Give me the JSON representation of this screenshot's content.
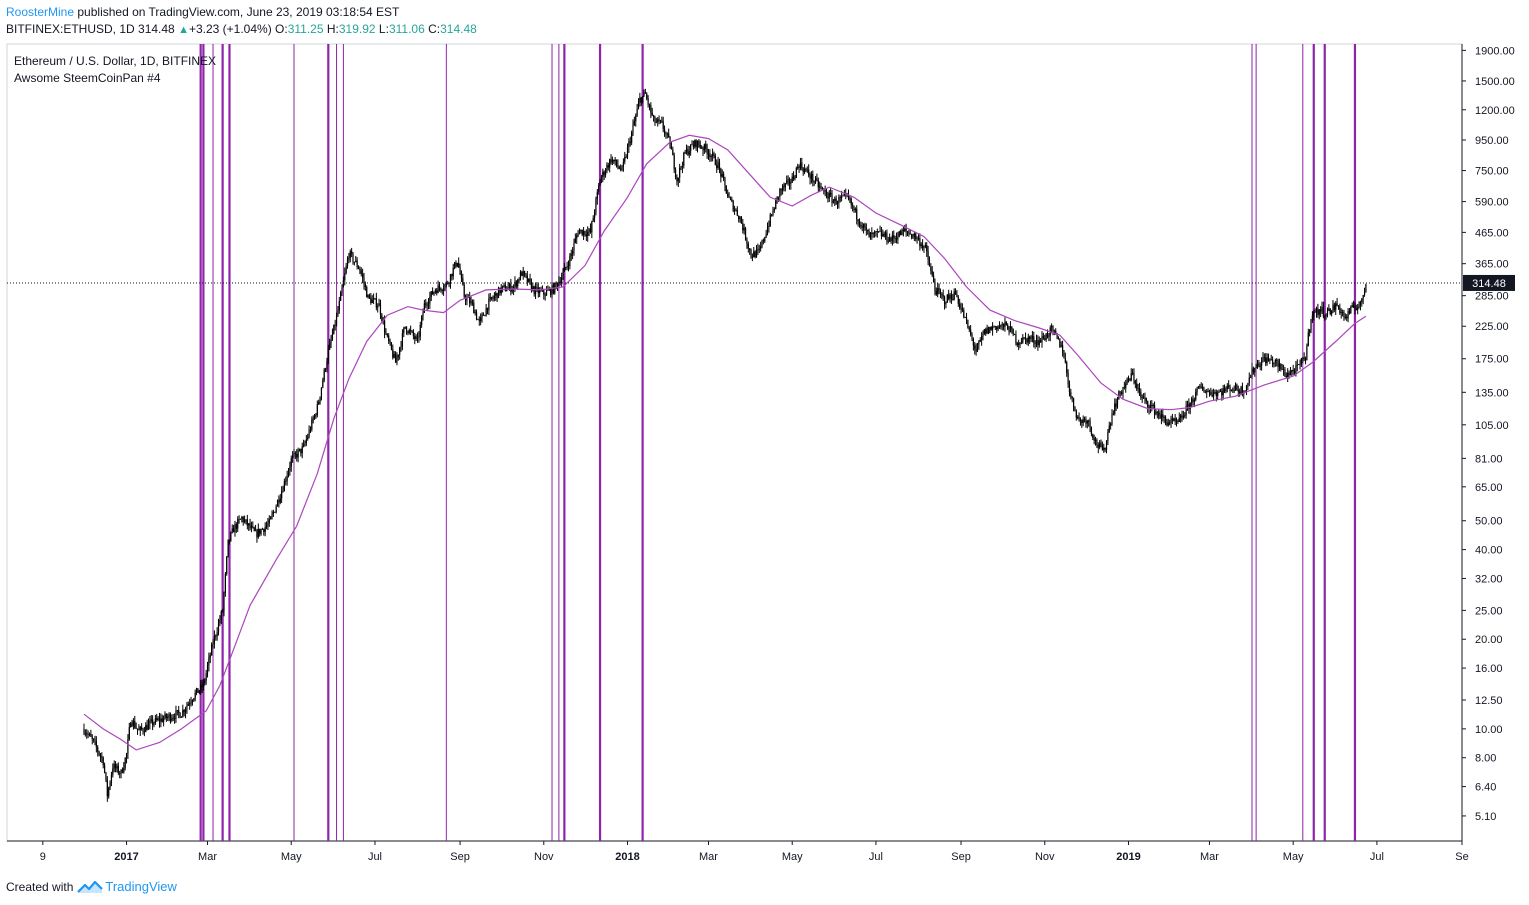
{
  "header": {
    "author": "RoosterMine",
    "published_text": "published on TradingView.com, June 23, 2019 03:18:54 EST"
  },
  "quote": {
    "symbol": "BITFINEX:ETHUSD, 1D",
    "last": "314.48",
    "arrow": "▲",
    "change": "+3.23 (+1.04%)",
    "o_label": "O:",
    "o_value": "311.25",
    "h_label": "H:",
    "h_value": "319.92",
    "l_label": "L:",
    "l_value": "311.06",
    "c_label": "C:",
    "c_value": "314.48"
  },
  "footer": {
    "created_with": "Created with",
    "brand": "TradingView"
  },
  "colors": {
    "candle": "#000000",
    "moving_average": "#ab47bc",
    "vertical_lines": "#8e24aa",
    "brand_blue": "#2196f3",
    "up_green": "#26a69a"
  },
  "chart_data": {
    "type": "line",
    "title": "Ethereum / U.S. Dollar, 1D, BITFINEX",
    "subtitle": "Awsome SteemCoinPan #4",
    "y_scale": "log",
    "ylim": [
      4.3,
      1950
    ],
    "xlim": [
      "2016-12-01",
      "2019-09-01"
    ],
    "y_ticks": [
      "1900.00",
      "1500.00",
      "1200.00",
      "950.00",
      "750.00",
      "590.00",
      "465.00",
      "365.00",
      "285.00",
      "225.00",
      "175.00",
      "135.00",
      "105.00",
      "81.00",
      "65.00",
      "50.00",
      "40.00",
      "32.00",
      "25.00",
      "20.00",
      "16.00",
      "12.50",
      "10.00",
      "8.00",
      "6.40",
      "5.10"
    ],
    "x_ticks": [
      {
        "date": "2016-11-01",
        "label": "9"
      },
      {
        "date": "2017-01-01",
        "label": "2017"
      },
      {
        "date": "2017-03-01",
        "label": "Mar"
      },
      {
        "date": "2017-05-01",
        "label": "May"
      },
      {
        "date": "2017-07-01",
        "label": "Jul"
      },
      {
        "date": "2017-09-01",
        "label": "Sep"
      },
      {
        "date": "2017-11-01",
        "label": "Nov"
      },
      {
        "date": "2018-01-01",
        "label": "2018"
      },
      {
        "date": "2018-03-01",
        "label": "Mar"
      },
      {
        "date": "2018-05-01",
        "label": "May"
      },
      {
        "date": "2018-07-01",
        "label": "Jul"
      },
      {
        "date": "2018-09-01",
        "label": "Sep"
      },
      {
        "date": "2018-11-01",
        "label": "Nov"
      },
      {
        "date": "2019-01-01",
        "label": "2019"
      },
      {
        "date": "2019-03-01",
        "label": "Mar"
      },
      {
        "date": "2019-05-01",
        "label": "May"
      },
      {
        "date": "2019-07-01",
        "label": "Jul"
      },
      {
        "date": "2019-09-01",
        "label": "Se"
      }
    ],
    "last_price": 314.48,
    "last_price_label": "314.48",
    "vertical_lines": [
      {
        "date": "2017-02-24",
        "weight": "bold"
      },
      {
        "date": "2017-02-26",
        "weight": "bold"
      },
      {
        "date": "2017-03-05",
        "weight": "thin"
      },
      {
        "date": "2017-03-12",
        "weight": "bold"
      },
      {
        "date": "2017-03-17",
        "weight": "bold"
      },
      {
        "date": "2017-05-03",
        "weight": "thin"
      },
      {
        "date": "2017-05-28",
        "weight": "bold"
      },
      {
        "date": "2017-06-03",
        "weight": "thin"
      },
      {
        "date": "2017-06-08",
        "weight": "thin"
      },
      {
        "date": "2017-08-22",
        "weight": "thin"
      },
      {
        "date": "2017-11-07",
        "weight": "thin"
      },
      {
        "date": "2017-11-12",
        "weight": "thin"
      },
      {
        "date": "2017-11-16",
        "weight": "bold"
      },
      {
        "date": "2017-12-12",
        "weight": "bold"
      },
      {
        "date": "2018-01-12",
        "weight": "bold"
      },
      {
        "date": "2019-04-01",
        "weight": "thin"
      },
      {
        "date": "2019-04-04",
        "weight": "thin"
      },
      {
        "date": "2019-05-08",
        "weight": "thin"
      },
      {
        "date": "2019-05-16",
        "weight": "bold"
      },
      {
        "date": "2019-05-24",
        "weight": "bold"
      },
      {
        "date": "2019-06-15",
        "weight": "bold"
      }
    ],
    "series": [
      {
        "name": "ETHUSD",
        "style": "candles",
        "points": [
          [
            "2016-12-01",
            10.0
          ],
          [
            "2016-12-08",
            9.0
          ],
          [
            "2016-12-15",
            7.8
          ],
          [
            "2016-12-18",
            6.0
          ],
          [
            "2016-12-22",
            7.5
          ],
          [
            "2016-12-28",
            7.1
          ],
          [
            "2017-01-01",
            8.2
          ],
          [
            "2017-01-04",
            10.8
          ],
          [
            "2017-01-10",
            9.8
          ],
          [
            "2017-01-20",
            10.5
          ],
          [
            "2017-02-01",
            11.0
          ],
          [
            "2017-02-10",
            11.3
          ],
          [
            "2017-02-18",
            12.8
          ],
          [
            "2017-02-26",
            14.0
          ],
          [
            "2017-03-05",
            19.5
          ],
          [
            "2017-03-12",
            25.0
          ],
          [
            "2017-03-16",
            42.0
          ],
          [
            "2017-03-20",
            47.0
          ],
          [
            "2017-03-26",
            51.0
          ],
          [
            "2017-04-05",
            45.0
          ],
          [
            "2017-04-15",
            49.0
          ],
          [
            "2017-04-25",
            65.0
          ],
          [
            "2017-05-01",
            80.0
          ],
          [
            "2017-05-10",
            88.0
          ],
          [
            "2017-05-20",
            120.0
          ],
          [
            "2017-05-28",
            185.0
          ],
          [
            "2017-06-03",
            240.0
          ],
          [
            "2017-06-12",
            395.0
          ],
          [
            "2017-06-20",
            350.0
          ],
          [
            "2017-06-26",
            280.0
          ],
          [
            "2017-07-04",
            265.0
          ],
          [
            "2017-07-09",
            210.0
          ],
          [
            "2017-07-16",
            170.0
          ],
          [
            "2017-07-23",
            225.0
          ],
          [
            "2017-08-01",
            200.0
          ],
          [
            "2017-08-06",
            265.0
          ],
          [
            "2017-08-14",
            300.0
          ],
          [
            "2017-08-22",
            310.0
          ],
          [
            "2017-08-30",
            375.0
          ],
          [
            "2017-09-04",
            285.0
          ],
          [
            "2017-09-10",
            265.0
          ],
          [
            "2017-09-15",
            230.0
          ],
          [
            "2017-09-22",
            270.0
          ],
          [
            "2017-10-01",
            300.0
          ],
          [
            "2017-10-10",
            305.0
          ],
          [
            "2017-10-16",
            340.0
          ],
          [
            "2017-10-25",
            297.0
          ],
          [
            "2017-11-01",
            290.0
          ],
          [
            "2017-11-08",
            300.0
          ],
          [
            "2017-11-14",
            330.0
          ],
          [
            "2017-11-20",
            380.0
          ],
          [
            "2017-11-26",
            470.0
          ],
          [
            "2017-12-05",
            465.0
          ],
          [
            "2017-12-12",
            700.0
          ],
          [
            "2017-12-20",
            820.0
          ],
          [
            "2017-12-28",
            750.0
          ],
          [
            "2018-01-04",
            1000.0
          ],
          [
            "2018-01-10",
            1300.0
          ],
          [
            "2018-01-14",
            1350.0
          ],
          [
            "2018-01-20",
            1100.0
          ],
          [
            "2018-01-26",
            1070.0
          ],
          [
            "2018-02-01",
            920.0
          ],
          [
            "2018-02-06",
            700.0
          ],
          [
            "2018-02-12",
            860.0
          ],
          [
            "2018-02-20",
            930.0
          ],
          [
            "2018-03-01",
            870.0
          ],
          [
            "2018-03-08",
            780.0
          ],
          [
            "2018-03-16",
            600.0
          ],
          [
            "2018-03-24",
            520.0
          ],
          [
            "2018-04-01",
            390.0
          ],
          [
            "2018-04-07",
            400.0
          ],
          [
            "2018-04-14",
            500.0
          ],
          [
            "2018-04-22",
            640.0
          ],
          [
            "2018-05-01",
            700.0
          ],
          [
            "2018-05-06",
            790.0
          ],
          [
            "2018-05-14",
            720.0
          ],
          [
            "2018-05-22",
            650.0
          ],
          [
            "2018-06-01",
            590.0
          ],
          [
            "2018-06-10",
            610.0
          ],
          [
            "2018-06-18",
            520.0
          ],
          [
            "2018-06-26",
            450.0
          ],
          [
            "2018-07-04",
            460.0
          ],
          [
            "2018-07-12",
            440.0
          ],
          [
            "2018-07-22",
            470.0
          ],
          [
            "2018-07-30",
            450.0
          ],
          [
            "2018-08-06",
            410.0
          ],
          [
            "2018-08-13",
            300.0
          ],
          [
            "2018-08-20",
            275.0
          ],
          [
            "2018-08-28",
            290.0
          ],
          [
            "2018-09-05",
            230.0
          ],
          [
            "2018-09-12",
            185.0
          ],
          [
            "2018-09-18",
            215.0
          ],
          [
            "2018-09-26",
            225.0
          ],
          [
            "2018-10-05",
            225.0
          ],
          [
            "2018-10-12",
            200.0
          ],
          [
            "2018-10-20",
            205.0
          ],
          [
            "2018-10-28",
            200.0
          ],
          [
            "2018-11-06",
            218.0
          ],
          [
            "2018-11-14",
            190.0
          ],
          [
            "2018-11-20",
            130.0
          ],
          [
            "2018-11-26",
            108.0
          ],
          [
            "2018-12-02",
            110.0
          ],
          [
            "2018-12-08",
            92.0
          ],
          [
            "2018-12-14",
            85.0
          ],
          [
            "2018-12-20",
            115.0
          ],
          [
            "2018-12-26",
            135.0
          ],
          [
            "2019-01-04",
            155.0
          ],
          [
            "2019-01-10",
            130.0
          ],
          [
            "2019-01-18",
            120.0
          ],
          [
            "2019-01-28",
            108.0
          ],
          [
            "2019-02-06",
            106.0
          ],
          [
            "2019-02-14",
            122.0
          ],
          [
            "2019-02-22",
            140.0
          ],
          [
            "2019-03-01",
            135.0
          ],
          [
            "2019-03-08",
            135.0
          ],
          [
            "2019-03-16",
            140.0
          ],
          [
            "2019-03-26",
            137.0
          ],
          [
            "2019-04-03",
            165.0
          ],
          [
            "2019-04-10",
            175.0
          ],
          [
            "2019-04-18",
            170.0
          ],
          [
            "2019-04-26",
            155.0
          ],
          [
            "2019-05-04",
            162.0
          ],
          [
            "2019-05-10",
            178.0
          ],
          [
            "2019-05-14",
            245.0
          ],
          [
            "2019-05-20",
            255.0
          ],
          [
            "2019-05-26",
            250.0
          ],
          [
            "2019-06-02",
            265.0
          ],
          [
            "2019-06-08",
            240.0
          ],
          [
            "2019-06-14",
            260.0
          ],
          [
            "2019-06-20",
            270.0
          ],
          [
            "2019-06-23",
            314.48
          ]
        ]
      },
      {
        "name": "Moving Average",
        "style": "line",
        "points": [
          [
            "2016-12-01",
            11.2
          ],
          [
            "2016-12-15",
            10.0
          ],
          [
            "2016-12-28",
            9.2
          ],
          [
            "2017-01-08",
            8.5
          ],
          [
            "2017-01-25",
            9.0
          ],
          [
            "2017-02-10",
            10.0
          ],
          [
            "2017-02-28",
            11.5
          ],
          [
            "2017-03-10",
            14.0
          ],
          [
            "2017-03-20",
            18.5
          ],
          [
            "2017-04-01",
            26.0
          ],
          [
            "2017-04-20",
            37.0
          ],
          [
            "2017-05-05",
            48.0
          ],
          [
            "2017-05-20",
            72.0
          ],
          [
            "2017-06-01",
            110.0
          ],
          [
            "2017-06-12",
            150.0
          ],
          [
            "2017-06-25",
            200.0
          ],
          [
            "2017-07-10",
            245.0
          ],
          [
            "2017-07-25",
            262.0
          ],
          [
            "2017-08-05",
            255.0
          ],
          [
            "2017-08-20",
            250.0
          ],
          [
            "2017-09-01",
            275.0
          ],
          [
            "2017-09-20",
            298.0
          ],
          [
            "2017-10-10",
            300.0
          ],
          [
            "2017-10-30",
            298.0
          ],
          [
            "2017-11-15",
            305.0
          ],
          [
            "2017-12-01",
            360.0
          ],
          [
            "2017-12-15",
            470.0
          ],
          [
            "2018-01-01",
            610.0
          ],
          [
            "2018-01-15",
            790.0
          ],
          [
            "2018-02-01",
            935.0
          ],
          [
            "2018-02-15",
            985.0
          ],
          [
            "2018-03-01",
            960.0
          ],
          [
            "2018-03-15",
            880.0
          ],
          [
            "2018-04-01",
            720.0
          ],
          [
            "2018-04-15",
            610.0
          ],
          [
            "2018-05-01",
            570.0
          ],
          [
            "2018-05-15",
            620.0
          ],
          [
            "2018-05-28",
            660.0
          ],
          [
            "2018-06-15",
            610.0
          ],
          [
            "2018-07-01",
            540.0
          ],
          [
            "2018-07-20",
            490.0
          ],
          [
            "2018-08-05",
            450.0
          ],
          [
            "2018-08-20",
            380.0
          ],
          [
            "2018-09-05",
            305.0
          ],
          [
            "2018-09-22",
            255.0
          ],
          [
            "2018-10-10",
            235.0
          ],
          [
            "2018-10-28",
            222.0
          ],
          [
            "2018-11-12",
            210.0
          ],
          [
            "2018-11-25",
            180.0
          ],
          [
            "2018-12-12",
            145.0
          ],
          [
            "2018-12-28",
            128.0
          ],
          [
            "2019-01-15",
            119.0
          ],
          [
            "2019-02-01",
            118.0
          ],
          [
            "2019-02-15",
            120.0
          ],
          [
            "2019-03-01",
            126.0
          ],
          [
            "2019-03-20",
            131.0
          ],
          [
            "2019-04-10",
            143.0
          ],
          [
            "2019-05-01",
            153.0
          ],
          [
            "2019-05-15",
            170.0
          ],
          [
            "2019-06-01",
            200.0
          ],
          [
            "2019-06-15",
            230.0
          ],
          [
            "2019-06-23",
            243.0
          ]
        ]
      }
    ]
  }
}
